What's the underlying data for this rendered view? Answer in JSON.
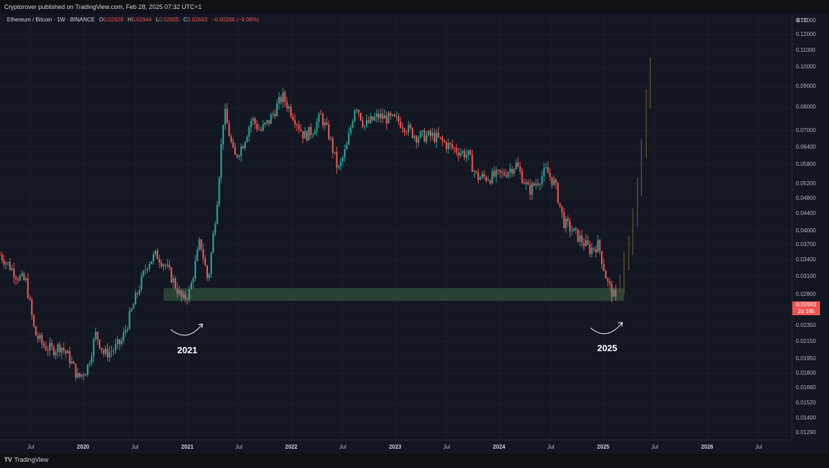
{
  "header": {
    "published_text": "Cryptorover published on TradingView.com, Feb 28, 2025 07:32 UTC+1"
  },
  "legend": {
    "symbol": "Ethereum / Bitcoin · 1W · BINANCE",
    "o_label": "O",
    "o_value": "0.02929",
    "h_label": "H",
    "h_value": "0.02944",
    "l_label": "L",
    "l_value": "0.02605",
    "c_label": "C",
    "c_value": "0.02663",
    "change": "−0.00266 (−9.08%)"
  },
  "axis": {
    "unit": "BTC"
  },
  "price_tag": {
    "price": "0.02663",
    "countdown": "2d 18h"
  },
  "annotations": {
    "left_year": "2021",
    "right_year": "2025"
  },
  "footer": {
    "logo_mark": "TV",
    "brand": "TradingView"
  },
  "colors": {
    "up": "#26a69a",
    "down": "#ef5350",
    "projection": "#6b5a2e",
    "support_zone": "#2e4a3a",
    "background": "#131722"
  },
  "chart_data": {
    "type": "candlestick",
    "title": "",
    "yscale": "log",
    "ylim": [
      0.0124,
      0.135
    ],
    "xlim": [
      "2019-03-15",
      "2026-10-25"
    ],
    "yticks": [
      "0.13000",
      "0.12000",
      "0.11000",
      "0.10000",
      "0.09000",
      "0.08000",
      "0.07000",
      "0.06400",
      "0.05800",
      "0.05200",
      "0.04800",
      "0.04400",
      "0.04000",
      "0.03700",
      "0.03400",
      "0.03100",
      "0.02800",
      "0.02650",
      "0.02350",
      "0.02150",
      "0.01950",
      "0.01800",
      "0.01660",
      "0.01520",
      "0.01400",
      "0.01290"
    ],
    "xticks": [
      {
        "label": "Jul",
        "date": "2019-07-01",
        "bold": false
      },
      {
        "label": "2020",
        "date": "2020-01-01",
        "bold": true
      },
      {
        "label": "Jul",
        "date": "2020-07-01",
        "bold": false
      },
      {
        "label": "2021",
        "date": "2021-01-01",
        "bold": true
      },
      {
        "label": "Jul",
        "date": "2021-07-01",
        "bold": false
      },
      {
        "label": "2022",
        "date": "2022-01-01",
        "bold": true
      },
      {
        "label": "Jul",
        "date": "2022-07-01",
        "bold": false
      },
      {
        "label": "2023",
        "date": "2023-01-01",
        "bold": true
      },
      {
        "label": "Jul",
        "date": "2023-07-01",
        "bold": false
      },
      {
        "label": "2024",
        "date": "2024-01-01",
        "bold": true
      },
      {
        "label": "Jul",
        "date": "2024-07-01",
        "bold": false
      },
      {
        "label": "2025",
        "date": "2025-01-01",
        "bold": true
      },
      {
        "label": "Jul",
        "date": "2025-07-01",
        "bold": false
      },
      {
        "label": "2026",
        "date": "2026-01-01",
        "bold": true
      },
      {
        "label": "Jul",
        "date": "2026-07-01",
        "bold": false
      }
    ],
    "anchors": [
      [
        "2019-03-15",
        0.035
      ],
      [
        "2019-04-15",
        0.033
      ],
      [
        "2019-05-15",
        0.031
      ],
      [
        "2019-06-15",
        0.03
      ],
      [
        "2019-07-15",
        0.0225
      ],
      [
        "2019-08-15",
        0.021
      ],
      [
        "2019-09-15",
        0.0205
      ],
      [
        "2019-10-15",
        0.021
      ],
      [
        "2019-11-15",
        0.0195
      ],
      [
        "2019-12-15",
        0.0175
      ],
      [
        "2020-01-15",
        0.0185
      ],
      [
        "2020-02-15",
        0.0225
      ],
      [
        "2020-03-15",
        0.02
      ],
      [
        "2020-04-15",
        0.0205
      ],
      [
        "2020-05-15",
        0.0215
      ],
      [
        "2020-06-15",
        0.025
      ],
      [
        "2020-07-15",
        0.029
      ],
      [
        "2020-08-15",
        0.0335
      ],
      [
        "2020-09-15",
        0.035
      ],
      [
        "2020-10-15",
        0.033
      ],
      [
        "2020-11-15",
        0.03
      ],
      [
        "2020-12-15",
        0.027
      ],
      [
        "2021-01-10",
        0.0285
      ],
      [
        "2021-02-15",
        0.038
      ],
      [
        "2021-03-15",
        0.03
      ],
      [
        "2021-04-15",
        0.047
      ],
      [
        "2021-05-10",
        0.079
      ],
      [
        "2021-06-15",
        0.06
      ],
      [
        "2021-07-15",
        0.065
      ],
      [
        "2021-08-15",
        0.075
      ],
      [
        "2021-09-15",
        0.07
      ],
      [
        "2021-10-15",
        0.074
      ],
      [
        "2021-12-01",
        0.085
      ],
      [
        "2022-01-15",
        0.075
      ],
      [
        "2022-02-15",
        0.068
      ],
      [
        "2022-03-15",
        0.07
      ],
      [
        "2022-04-15",
        0.076
      ],
      [
        "2022-05-15",
        0.068
      ],
      [
        "2022-06-15",
        0.056
      ],
      [
        "2022-07-15",
        0.064
      ],
      [
        "2022-08-15",
        0.082
      ],
      [
        "2022-09-15",
        0.072
      ],
      [
        "2022-11-01",
        0.076
      ],
      [
        "2023-01-15",
        0.074
      ],
      [
        "2023-03-15",
        0.068
      ],
      [
        "2023-05-15",
        0.068
      ],
      [
        "2023-07-15",
        0.064
      ],
      [
        "2023-09-15",
        0.061
      ],
      [
        "2023-10-15",
        0.054
      ],
      [
        "2023-12-01",
        0.054
      ],
      [
        "2024-01-15",
        0.055
      ],
      [
        "2024-03-01",
        0.058
      ],
      [
        "2024-04-15",
        0.05
      ],
      [
        "2024-06-15",
        0.056
      ],
      [
        "2024-07-15",
        0.052
      ],
      [
        "2024-08-15",
        0.042
      ],
      [
        "2024-09-15",
        0.04
      ],
      [
        "2024-10-15",
        0.038
      ],
      [
        "2024-11-15",
        0.036
      ],
      [
        "2024-12-15",
        0.037
      ],
      [
        "2025-01-15",
        0.03
      ],
      [
        "2025-02-15",
        0.027
      ]
    ],
    "projection_anchors": [
      [
        "2025-03-01",
        0.029
      ],
      [
        "2025-03-15",
        0.033
      ],
      [
        "2025-04-01",
        0.036
      ],
      [
        "2025-04-15",
        0.042
      ],
      [
        "2025-05-01",
        0.05
      ],
      [
        "2025-05-15",
        0.062
      ],
      [
        "2025-06-01",
        0.082
      ],
      [
        "2025-06-15",
        0.098
      ]
    ],
    "support_zone": {
      "y_range": [
        0.027,
        0.029
      ],
      "x_range": [
        "2020-10-10",
        "2025-03-15"
      ]
    },
    "curve_annotations": [
      {
        "label": "2021",
        "date": "2021-01-01",
        "y": 0.023
      },
      {
        "label": "2025",
        "date": "2025-01-15",
        "y": 0.0232
      }
    ]
  }
}
